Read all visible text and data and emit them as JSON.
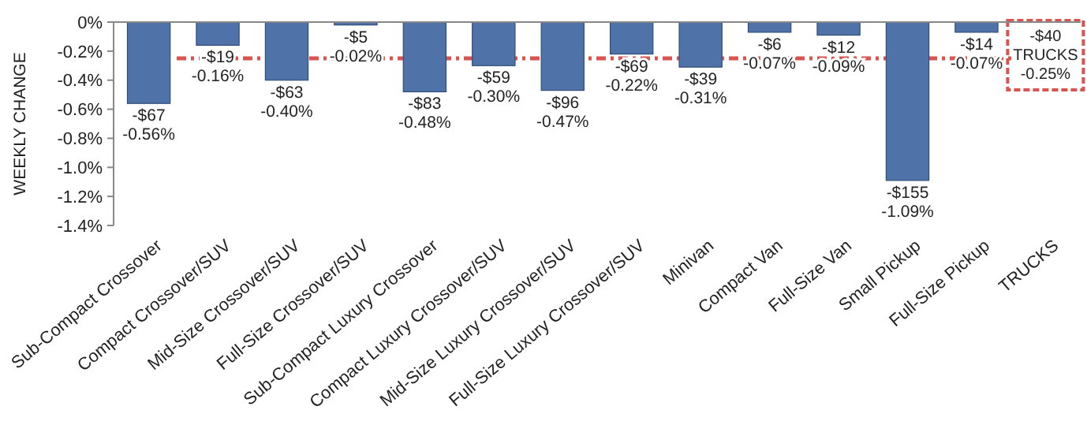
{
  "chart_data": {
    "type": "bar",
    "ylabel": "WEEKLY CHANGE",
    "categories": [
      "Sub-Compact Crossover",
      "Compact Crossover/SUV",
      "Mid-Size Crossover/SUV",
      "Full-Size Crossover/SUV",
      "Sub-Compact Luxury Crossover",
      "Compact Luxury Crossover/SUV",
      "Mid-Size Luxury Crossover/SUV",
      "Full-Size Luxury Crossover/SUV",
      "Minivan",
      "Compact Van",
      "Full-Size Van",
      "Small Pickup",
      "Full-Size Pickup",
      "TRUCKS"
    ],
    "values": [
      -0.56,
      -0.16,
      -0.4,
      -0.02,
      -0.48,
      -0.3,
      -0.47,
      -0.22,
      -0.31,
      -0.07,
      -0.09,
      -1.09,
      -0.07,
      null
    ],
    "value_labels": [
      "-$67\n-0.56%",
      "-$19\n-0.16%",
      "-$63\n-0.40%",
      "-$5\n-0.02%",
      "-$83\n-0.48%",
      "-$59\n-0.30%",
      "-$96\n-0.47%",
      "-$69\n-0.22%",
      "-$39\n-0.31%",
      "-$6\n-0.07%",
      "-$12\n-0.09%",
      "-$155\n-1.09%",
      "-$14\n-0.07%",
      null
    ],
    "color": "#4f73a8",
    "ylim": [
      -1.4,
      0
    ],
    "yticks": [
      {
        "value": 0,
        "label": "0%"
      },
      {
        "value": -0.2,
        "label": "-0.2%"
      },
      {
        "value": -0.4,
        "label": "-0.4%"
      },
      {
        "value": -0.6,
        "label": "-0.6%"
      },
      {
        "value": -0.8,
        "label": "-0.8%"
      },
      {
        "value": -1.0,
        "label": "-1.0%"
      },
      {
        "value": -1.2,
        "label": "-1.2%"
      },
      {
        "value": -1.4,
        "label": "-1.4%"
      }
    ],
    "ref_lines": [
      {
        "axis": "y",
        "value": -0.25,
        "label": "-$40\nTRUCKS\n-0.25%",
        "color": "#d9534f",
        "line_style": "dashed"
      }
    ],
    "grid": false
  }
}
